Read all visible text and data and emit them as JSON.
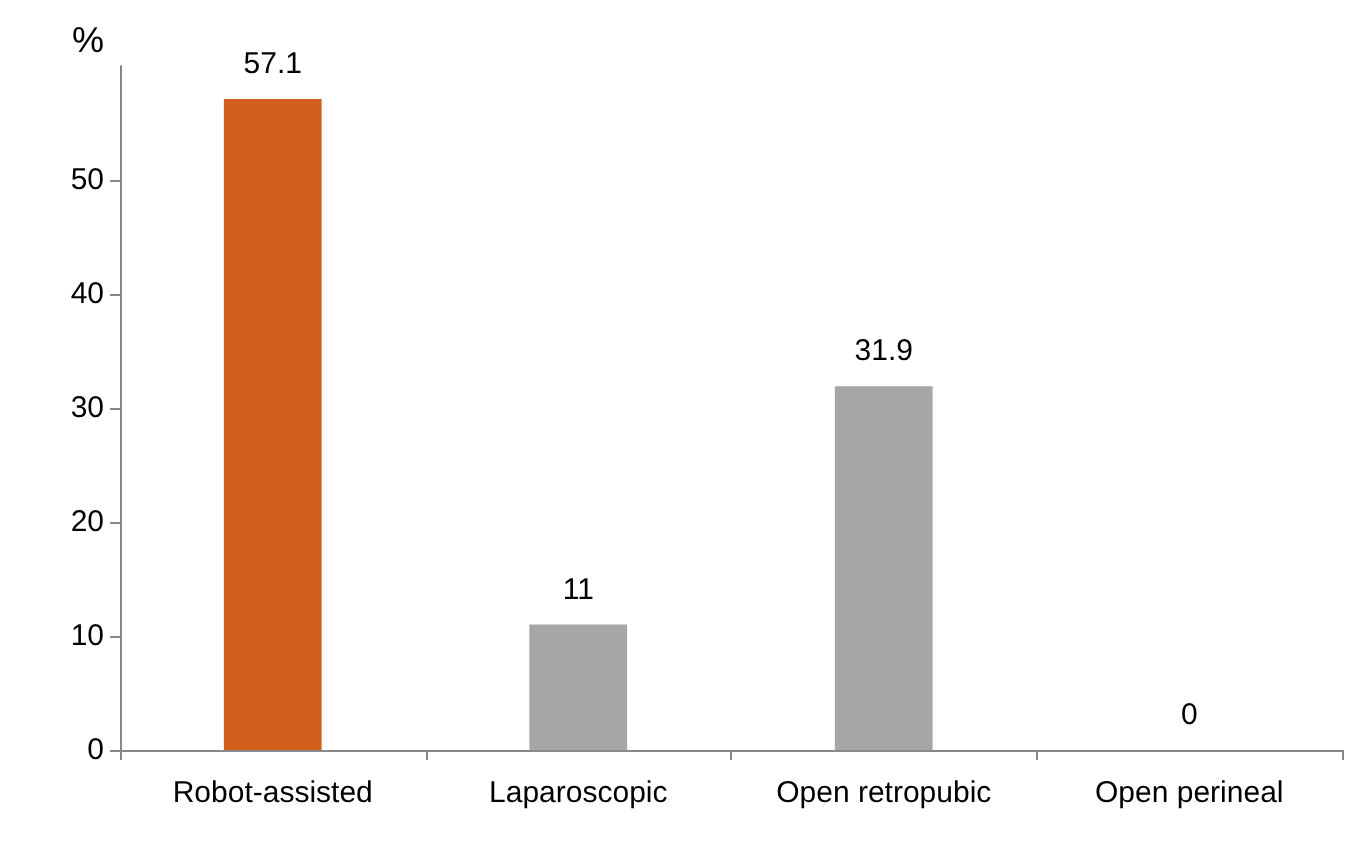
{
  "chart_data": {
    "type": "bar",
    "ylabel": "%",
    "categories": [
      "Robot-assisted",
      "Laparoscopic",
      "Open retropubic",
      "Open perineal"
    ],
    "values": [
      57.1,
      11,
      31.9,
      0
    ],
    "colors": [
      "#d2601c",
      "#a6a6a6",
      "#a6a6a6",
      "#a6a6a6"
    ],
    "ylim": [
      0,
      60
    ],
    "yticks": [
      0,
      10,
      20,
      30,
      40,
      50
    ],
    "grid": false,
    "data_labels": true
  }
}
